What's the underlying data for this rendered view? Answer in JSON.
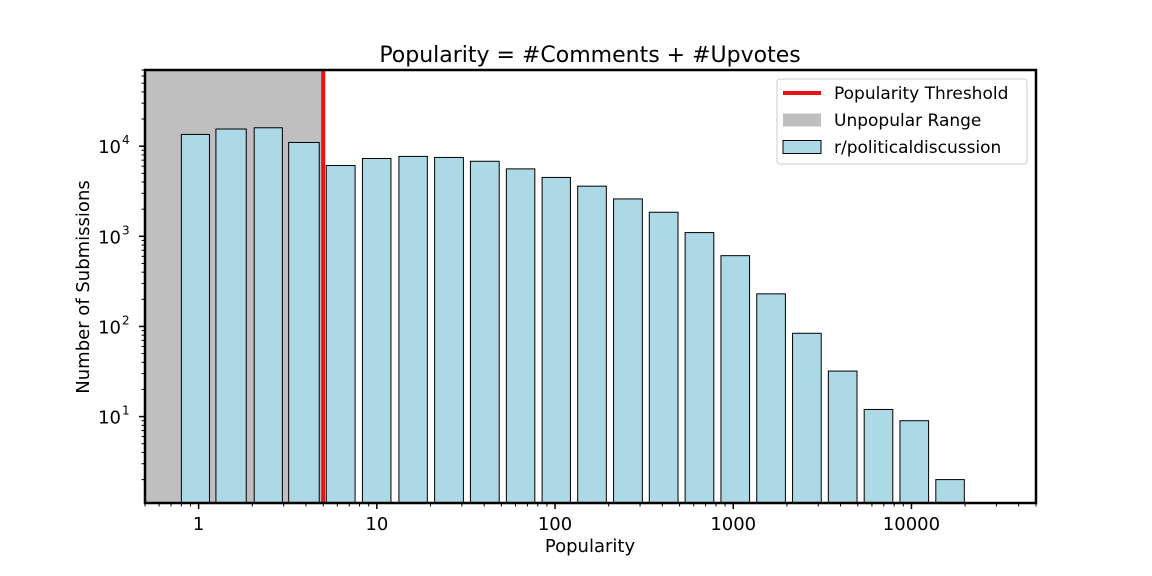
{
  "chart_data": {
    "type": "bar",
    "title": "Popularity = #Comments + #Upvotes",
    "xlabel": "Popularity",
    "ylabel": "Number of Submissions",
    "xscale": "log",
    "yscale": "log",
    "xlim": [
      0.5,
      50000
    ],
    "ylim": [
      1.1,
      70000
    ],
    "x_ticks": [
      {
        "value": 1,
        "label": "1"
      },
      {
        "value": 10,
        "label": "10"
      },
      {
        "value": 100,
        "label": "100"
      },
      {
        "value": 1000,
        "label": "1000"
      },
      {
        "value": 10000,
        "label": "10000"
      }
    ],
    "y_ticks": [
      {
        "value": 10,
        "base": "10",
        "exp": "1"
      },
      {
        "value": 100,
        "base": "10",
        "exp": "2"
      },
      {
        "value": 1000,
        "base": "10",
        "exp": "3"
      },
      {
        "value": 10000,
        "base": "10",
        "exp": "4"
      }
    ],
    "threshold": 5,
    "unpopular_range": [
      0.5,
      5
    ],
    "legend": {
      "placement": "top-right",
      "entries": [
        {
          "label": "Popularity Threshold",
          "kind": "line",
          "color": "#ee1111"
        },
        {
          "label": "Unpopular Range",
          "kind": "patch",
          "color": "#bfbfbf"
        },
        {
          "label": "r/politicaldiscussion",
          "kind": "patch",
          "color": "#add8e6"
        }
      ]
    },
    "series": [
      {
        "name": "r/politicaldiscussion",
        "color": "#add8e6",
        "bins": [
          {
            "x0": 0.8,
            "x1": 1.15,
            "y": 13500
          },
          {
            "x0": 1.25,
            "x1": 1.85,
            "y": 15500
          },
          {
            "x0": 2.05,
            "x1": 2.95,
            "y": 16000
          },
          {
            "x0": 3.2,
            "x1": 4.75,
            "y": 11000
          },
          {
            "x0": 5.2,
            "x1": 7.55,
            "y": 6100
          },
          {
            "x0": 8.3,
            "x1": 12.0,
            "y": 7300
          },
          {
            "x0": 13.3,
            "x1": 19.2,
            "y": 7700
          },
          {
            "x0": 21.1,
            "x1": 30.6,
            "y": 7500
          },
          {
            "x0": 33.5,
            "x1": 48.6,
            "y": 6800
          },
          {
            "x0": 53.3,
            "x1": 77.0,
            "y": 5600
          },
          {
            "x0": 84.6,
            "x1": 122,
            "y": 4500
          },
          {
            "x0": 134,
            "x1": 194,
            "y": 3600
          },
          {
            "x0": 213,
            "x1": 309,
            "y": 2600
          },
          {
            "x0": 338,
            "x1": 490,
            "y": 1850
          },
          {
            "x0": 537,
            "x1": 778,
            "y": 1100
          },
          {
            "x0": 853,
            "x1": 1235,
            "y": 610
          },
          {
            "x0": 1355,
            "x1": 1962,
            "y": 230
          },
          {
            "x0": 2152,
            "x1": 3117,
            "y": 84
          },
          {
            "x0": 3417,
            "x1": 4950,
            "y": 32
          },
          {
            "x0": 5430,
            "x1": 7860,
            "y": 12
          },
          {
            "x0": 8620,
            "x1": 12480,
            "y": 9
          },
          {
            "x0": 13700,
            "x1": 19800,
            "y": 2
          }
        ]
      }
    ]
  }
}
